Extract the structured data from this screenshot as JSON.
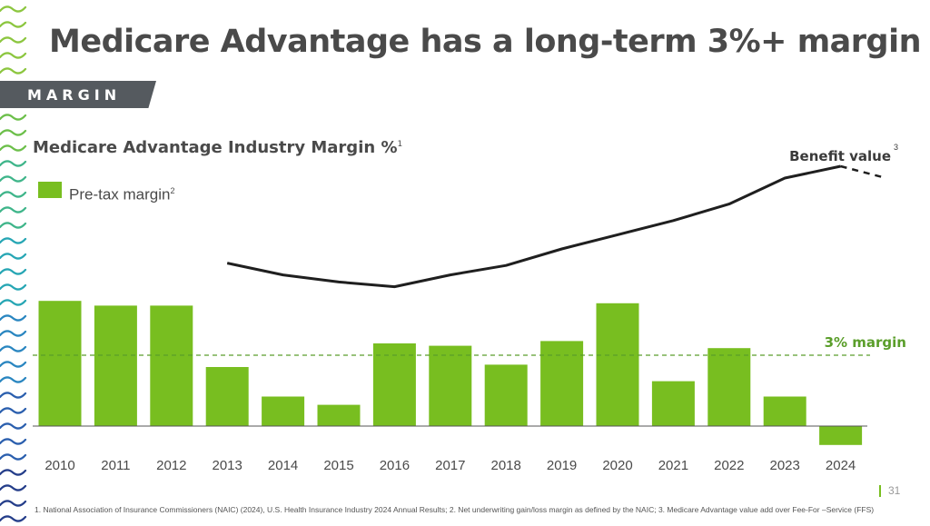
{
  "slide": {
    "title": "Medicare Advantage has a long-term 3%+ margin",
    "section_tag": "MARGIN",
    "footnote": "1. National Association of Insurance Commissioners (NAIC) (2024), U.S. Health Insurance Industry 2024 Annual Results; 2. Net underwriting gain/loss margin as defined by the NAIC; 3. Medicare Advantage value add over Fee-For –Service (FFS)",
    "page_number": "31"
  },
  "colors": {
    "bar": "#78be20",
    "line": "#1f1f1f",
    "threshold": "#5a9e2a",
    "title": "#4a4a4a"
  },
  "chart_data": {
    "type": "bar",
    "title": "Medicare Advantage Industry Margin %",
    "title_footnote": "1",
    "categories": [
      "2010",
      "2011",
      "2012",
      "2013",
      "2014",
      "2015",
      "2016",
      "2017",
      "2018",
      "2019",
      "2020",
      "2021",
      "2022",
      "2023",
      "2024"
    ],
    "series": [
      {
        "name": "Pre-tax margin",
        "name_footnote": "2",
        "values": [
          5.3,
          5.1,
          5.1,
          2.5,
          1.25,
          0.9,
          3.5,
          3.4,
          2.6,
          3.6,
          5.2,
          1.9,
          3.3,
          1.25,
          -0.8
        ]
      }
    ],
    "line_series": {
      "name": "Benefit value",
      "name_footnote": "3",
      "x": [
        "2013",
        "2014",
        "2015",
        "2016",
        "2017",
        "2018",
        "2019",
        "2020",
        "2021",
        "2022",
        "2023",
        "2024"
      ],
      "values": [
        6.9,
        6.4,
        6.1,
        5.9,
        6.4,
        6.8,
        7.5,
        8.1,
        8.7,
        9.4,
        10.5,
        11.0
      ],
      "projection": 10.5
    },
    "threshold": {
      "label": "3% margin",
      "value": 3
    },
    "ylim": [
      -1,
      11.5
    ],
    "legend": "top-left",
    "grid": false
  }
}
